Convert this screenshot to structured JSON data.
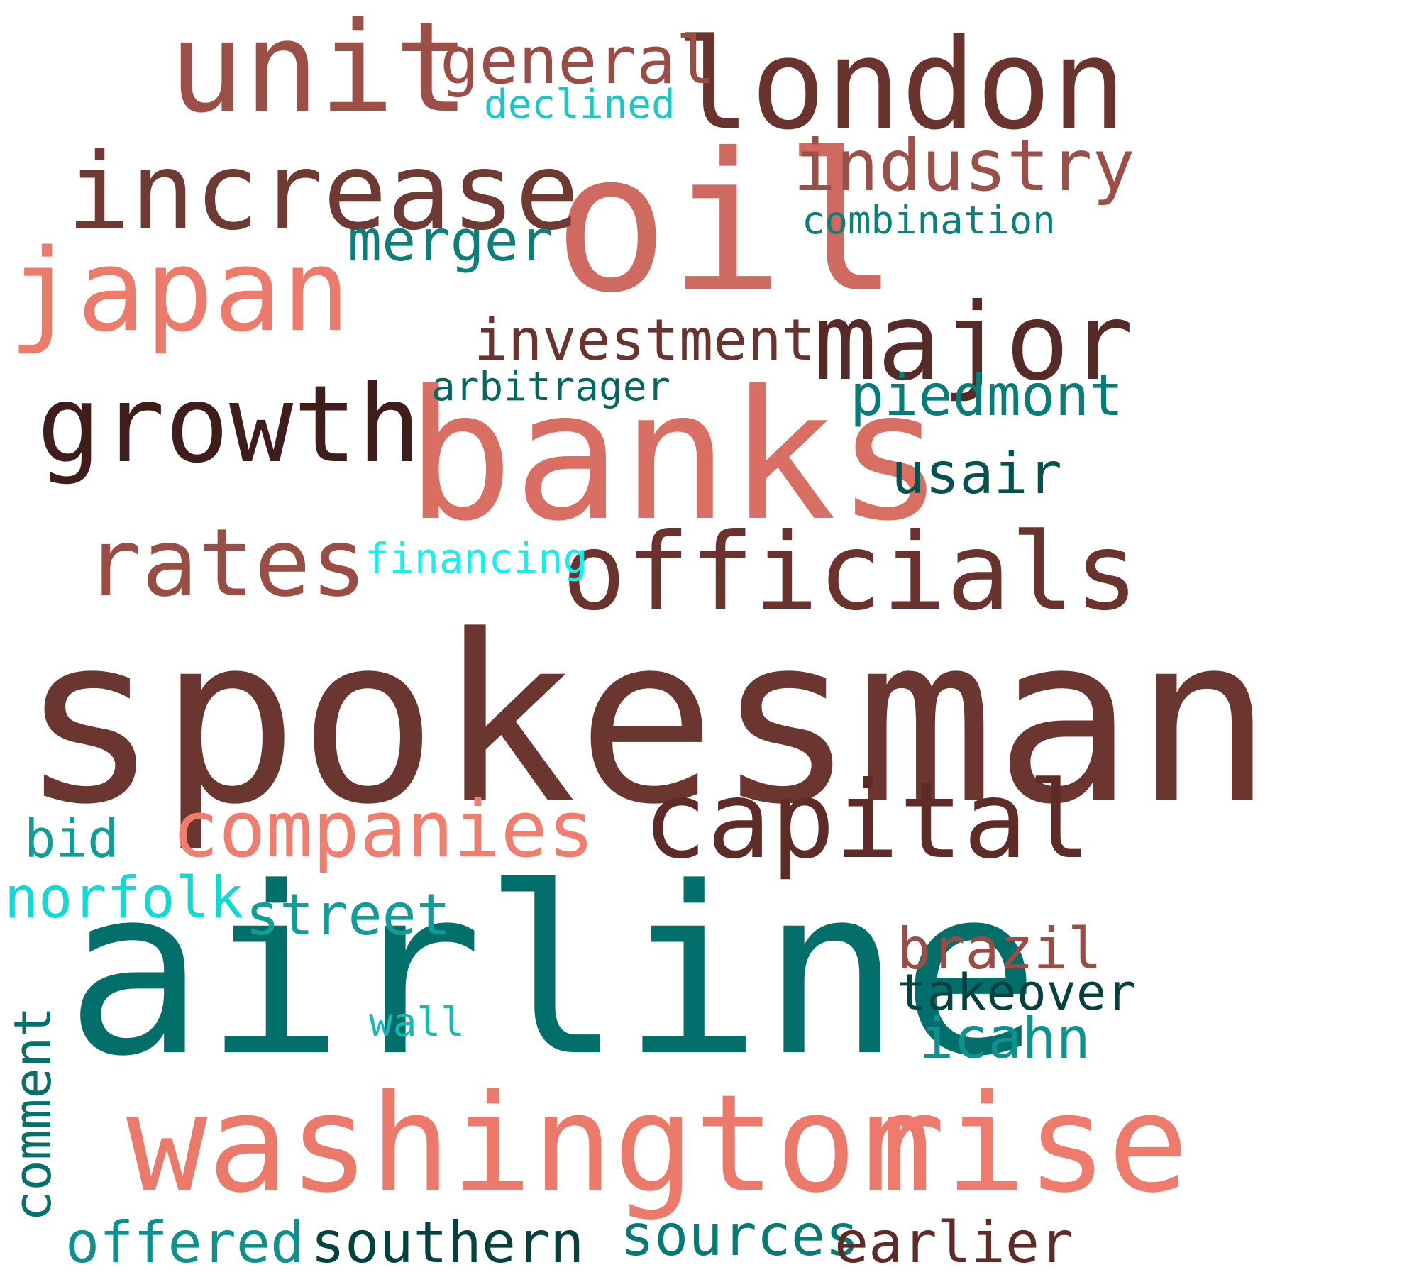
{
  "words": [
    {
      "text": "spokesman",
      "color": "#6b3530"
    },
    {
      "text": "airline",
      "color": "#026f6b"
    },
    {
      "text": "banks",
      "color": "#d96f63"
    },
    {
      "text": "oil",
      "color": "#cf6a60"
    },
    {
      "text": "washington",
      "color": "#ec7a6b"
    },
    {
      "text": "rise",
      "color": "#ef7b6d"
    },
    {
      "text": "london",
      "color": "#6a332d"
    },
    {
      "text": "unit",
      "color": "#9c4f47"
    },
    {
      "text": "increase",
      "color": "#6f3a33"
    },
    {
      "text": "japan",
      "color": "#ec7b6c"
    },
    {
      "text": "growth",
      "color": "#3f1d1b"
    },
    {
      "text": "officials",
      "color": "#6a332d"
    },
    {
      "text": "capital",
      "color": "#5e2b27"
    },
    {
      "text": "major",
      "color": "#562a26"
    },
    {
      "text": "rates",
      "color": "#9a4d45"
    },
    {
      "text": "companies",
      "color": "#f07d6e"
    },
    {
      "text": "industry",
      "color": "#9c4f47"
    },
    {
      "text": "general",
      "color": "#9a4d45"
    },
    {
      "text": "investment",
      "color": "#6a332d"
    },
    {
      "text": "merger",
      "color": "#0b7f79"
    },
    {
      "text": "piedmont",
      "color": "#087c77"
    },
    {
      "text": "usair",
      "color": "#03524f"
    },
    {
      "text": "combination",
      "color": "#0b7f79"
    },
    {
      "text": "declined",
      "color": "#1ac7c6"
    },
    {
      "text": "arbitrager",
      "color": "#066761"
    },
    {
      "text": "financing",
      "color": "#11f2f0"
    },
    {
      "text": "bid",
      "color": "#0f9d98"
    },
    {
      "text": "norfolk",
      "color": "#12d8d6"
    },
    {
      "text": "street",
      "color": "#0f9d98"
    },
    {
      "text": "brazil",
      "color": "#9a4d45"
    },
    {
      "text": "takeover",
      "color": "#04413f"
    },
    {
      "text": "icahn",
      "color": "#0f928e"
    },
    {
      "text": "wall",
      "color": "#15b9b6"
    },
    {
      "text": "comment",
      "color": "#08706b"
    },
    {
      "text": "offered",
      "color": "#0f908c"
    },
    {
      "text": "southern",
      "color": "#04413f"
    },
    {
      "text": "sources",
      "color": "#077a75"
    },
    {
      "text": "earlier",
      "color": "#5e2b27"
    }
  ]
}
